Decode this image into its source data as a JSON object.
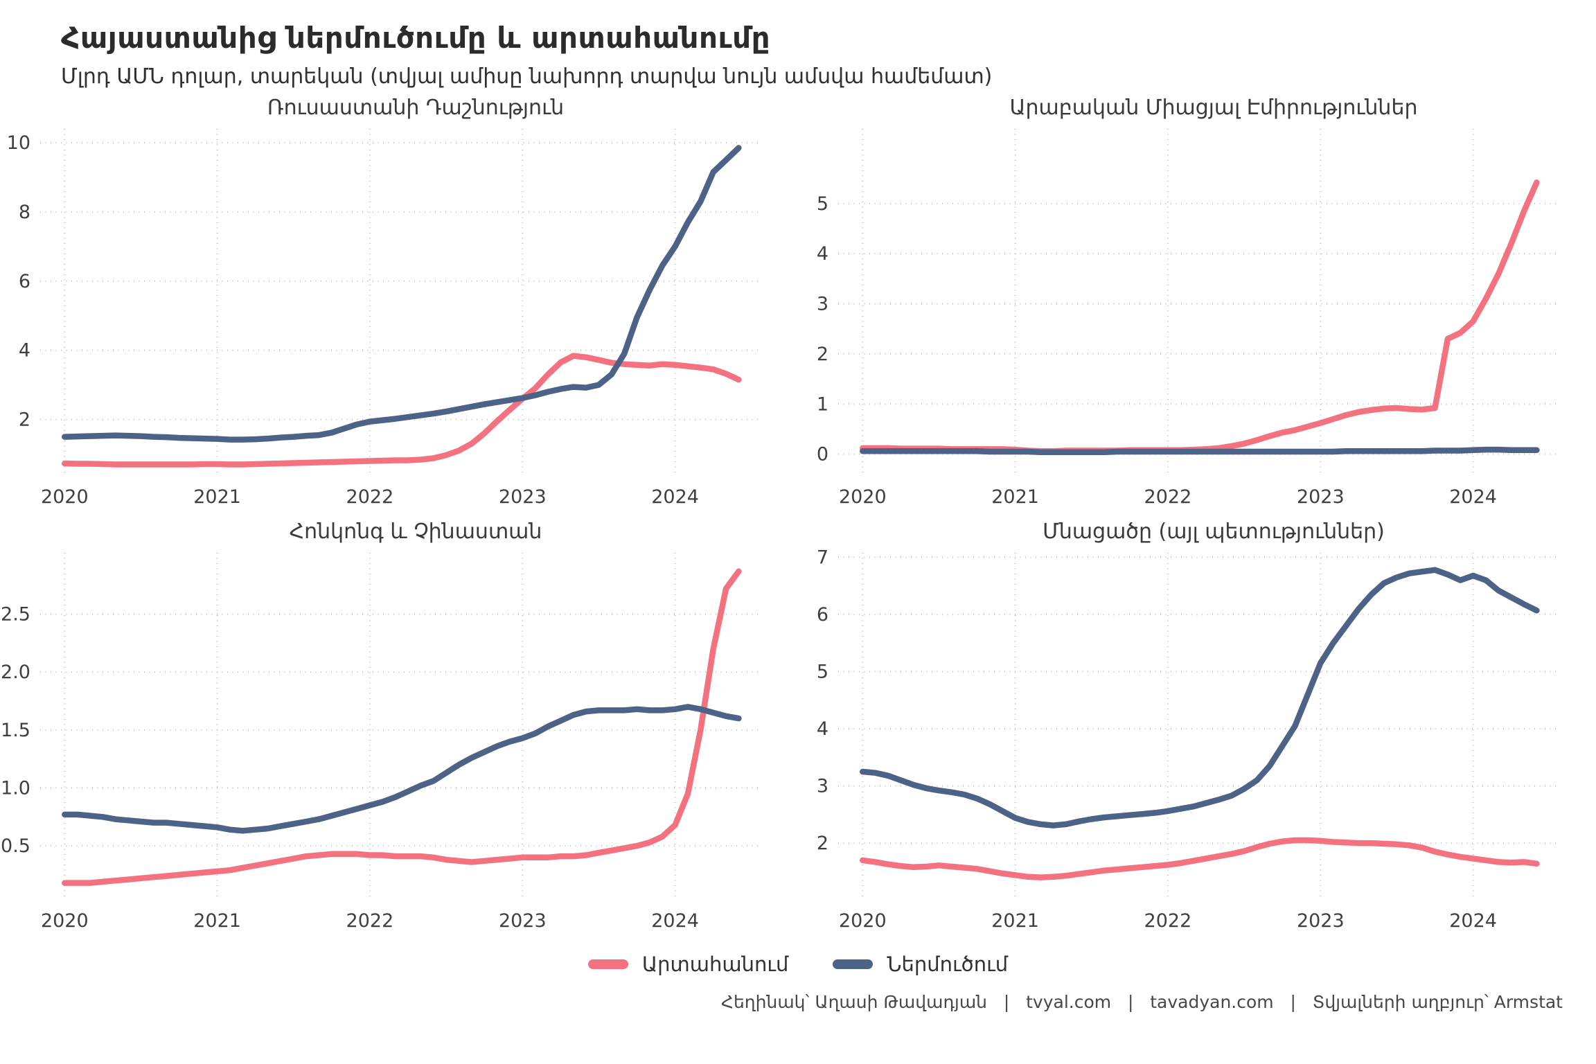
{
  "page": {
    "title": "Հայաստանից ներմուծումը և արտահանումը",
    "subtitle": "Մլրդ ԱՄՆ դոլար, տարեկան (տվյալ ամիսը նախորդ տարվա նույն ամսվա համեմատ)",
    "caption": "Հեղինակ՝ Աղասի Թավադյան   |   tvyal.com   |   tavadyan.com   |   Տվյալների աղբյուր՝ Armstat"
  },
  "legend": [
    {
      "key": "export",
      "label": "Արտահանում",
      "color": "#F4717F"
    },
    {
      "key": "import",
      "label": "Ներմուծում",
      "color": "#4D6287"
    }
  ],
  "axis": {
    "x_start_year": 2020,
    "x_step_months": 1,
    "xlim": [
      2019.84,
      2024.56
    ],
    "xtick_values": [
      2020,
      2021,
      2022,
      2023,
      2024
    ],
    "xtick_labels": [
      "2020",
      "2021",
      "2022",
      "2023",
      "2024"
    ]
  },
  "chart_data": [
    {
      "type": "line",
      "title": "Ռուսաստանի Դաշնություն",
      "ylim": [
        0.39,
        10.4
      ],
      "ytick_values": [
        2,
        4,
        6,
        8,
        10
      ],
      "ytick_labels": [
        "2",
        "4",
        "6",
        "8",
        "10"
      ],
      "series": [
        {
          "key": "export",
          "name": "Արտահանում",
          "color": "#F4717F",
          "values": [
            0.73,
            0.72,
            0.72,
            0.71,
            0.7,
            0.7,
            0.7,
            0.7,
            0.7,
            0.7,
            0.7,
            0.71,
            0.71,
            0.7,
            0.7,
            0.71,
            0.72,
            0.73,
            0.74,
            0.75,
            0.76,
            0.77,
            0.78,
            0.79,
            0.8,
            0.81,
            0.82,
            0.82,
            0.84,
            0.88,
            0.97,
            1.1,
            1.3,
            1.6,
            1.95,
            2.28,
            2.6,
            2.9,
            3.3,
            3.65,
            3.84,
            3.8,
            3.72,
            3.64,
            3.6,
            3.58,
            3.56,
            3.6,
            3.58,
            3.54,
            3.5,
            3.45,
            3.32,
            3.15
          ]
        },
        {
          "key": "import",
          "name": "Ներմուծում",
          "color": "#4D6287",
          "values": [
            1.5,
            1.51,
            1.52,
            1.53,
            1.54,
            1.53,
            1.52,
            1.5,
            1.49,
            1.47,
            1.46,
            1.45,
            1.44,
            1.42,
            1.42,
            1.43,
            1.45,
            1.48,
            1.5,
            1.53,
            1.55,
            1.62,
            1.74,
            1.86,
            1.94,
            1.98,
            2.02,
            2.07,
            2.12,
            2.17,
            2.23,
            2.3,
            2.37,
            2.44,
            2.5,
            2.56,
            2.62,
            2.7,
            2.8,
            2.88,
            2.94,
            2.92,
            3.0,
            3.3,
            3.9,
            4.95,
            5.75,
            6.45,
            7.0,
            7.7,
            8.3,
            9.15,
            9.5,
            9.85
          ]
        }
      ]
    },
    {
      "type": "line",
      "title": "Արաբական Միացյալ Էմիրություններ",
      "ylim": [
        -0.42,
        6.49
      ],
      "ytick_values": [
        0,
        1,
        2,
        3,
        4,
        5
      ],
      "ytick_labels": [
        "0",
        "1",
        "2",
        "3",
        "4",
        "5"
      ],
      "series": [
        {
          "key": "export",
          "name": "Արտահանում",
          "color": "#F4717F",
          "values": [
            0.12,
            0.12,
            0.12,
            0.11,
            0.11,
            0.11,
            0.11,
            0.1,
            0.1,
            0.1,
            0.1,
            0.1,
            0.09,
            0.07,
            0.06,
            0.06,
            0.07,
            0.07,
            0.07,
            0.07,
            0.07,
            0.08,
            0.08,
            0.08,
            0.08,
            0.08,
            0.09,
            0.1,
            0.12,
            0.16,
            0.21,
            0.28,
            0.36,
            0.43,
            0.48,
            0.55,
            0.62,
            0.7,
            0.78,
            0.84,
            0.88,
            0.91,
            0.92,
            0.9,
            0.89,
            0.92,
            2.3,
            2.42,
            2.65,
            3.1,
            3.6,
            4.2,
            4.85,
            5.42
          ]
        },
        {
          "key": "import",
          "name": "Ներմուծում",
          "color": "#4D6287",
          "values": [
            0.06,
            0.06,
            0.06,
            0.06,
            0.06,
            0.06,
            0.06,
            0.06,
            0.06,
            0.06,
            0.05,
            0.05,
            0.05,
            0.05,
            0.04,
            0.04,
            0.04,
            0.04,
            0.04,
            0.04,
            0.05,
            0.05,
            0.05,
            0.05,
            0.05,
            0.05,
            0.05,
            0.05,
            0.05,
            0.05,
            0.05,
            0.05,
            0.05,
            0.05,
            0.05,
            0.05,
            0.05,
            0.05,
            0.06,
            0.06,
            0.06,
            0.06,
            0.06,
            0.06,
            0.06,
            0.07,
            0.07,
            0.07,
            0.08,
            0.09,
            0.09,
            0.08,
            0.08,
            0.08
          ]
        }
      ]
    },
    {
      "type": "line",
      "title": "Հոնկոնգ և Չինաստան",
      "ylim": [
        0.04,
        3.03
      ],
      "ytick_values": [
        0.5,
        1.0,
        1.5,
        2.0,
        2.5
      ],
      "ytick_labels": [
        "0.5",
        "1.0",
        "1.5",
        "2.0",
        "2.5"
      ],
      "series": [
        {
          "key": "export",
          "name": "Արտահանում",
          "color": "#F4717F",
          "values": [
            0.18,
            0.18,
            0.18,
            0.19,
            0.2,
            0.21,
            0.22,
            0.23,
            0.24,
            0.25,
            0.26,
            0.27,
            0.28,
            0.29,
            0.31,
            0.33,
            0.35,
            0.37,
            0.39,
            0.41,
            0.42,
            0.43,
            0.43,
            0.43,
            0.42,
            0.42,
            0.41,
            0.41,
            0.41,
            0.4,
            0.38,
            0.37,
            0.36,
            0.37,
            0.38,
            0.39,
            0.4,
            0.4,
            0.4,
            0.41,
            0.41,
            0.42,
            0.44,
            0.46,
            0.48,
            0.5,
            0.53,
            0.58,
            0.68,
            0.95,
            1.5,
            2.2,
            2.72,
            2.87
          ]
        },
        {
          "key": "import",
          "name": "Ներմուծում",
          "color": "#4D6287",
          "values": [
            0.77,
            0.77,
            0.76,
            0.75,
            0.73,
            0.72,
            0.71,
            0.7,
            0.7,
            0.69,
            0.68,
            0.67,
            0.66,
            0.64,
            0.63,
            0.64,
            0.65,
            0.67,
            0.69,
            0.71,
            0.73,
            0.76,
            0.79,
            0.82,
            0.85,
            0.88,
            0.92,
            0.97,
            1.02,
            1.06,
            1.13,
            1.2,
            1.26,
            1.31,
            1.36,
            1.4,
            1.43,
            1.47,
            1.53,
            1.58,
            1.63,
            1.66,
            1.67,
            1.67,
            1.67,
            1.68,
            1.67,
            1.67,
            1.68,
            1.7,
            1.68,
            1.65,
            1.62,
            1.6
          ]
        }
      ]
    },
    {
      "type": "line",
      "title": "Մնացածը (այլ պետություններ)",
      "ylim": [
        1.02,
        7.08
      ],
      "ytick_values": [
        2,
        3,
        4,
        5,
        6,
        7
      ],
      "ytick_labels": [
        "2",
        "3",
        "4",
        "5",
        "6",
        "7"
      ],
      "series": [
        {
          "key": "export",
          "name": "Արտահանում",
          "color": "#F4717F",
          "values": [
            1.7,
            1.67,
            1.63,
            1.6,
            1.58,
            1.59,
            1.61,
            1.59,
            1.57,
            1.55,
            1.51,
            1.47,
            1.44,
            1.41,
            1.4,
            1.41,
            1.43,
            1.46,
            1.49,
            1.52,
            1.54,
            1.56,
            1.58,
            1.6,
            1.62,
            1.65,
            1.69,
            1.73,
            1.77,
            1.81,
            1.86,
            1.93,
            1.99,
            2.03,
            2.05,
            2.05,
            2.04,
            2.02,
            2.01,
            2.0,
            2.0,
            1.99,
            1.98,
            1.96,
            1.92,
            1.85,
            1.8,
            1.76,
            1.73,
            1.7,
            1.67,
            1.66,
            1.67,
            1.64
          ]
        },
        {
          "key": "import",
          "name": "Ներմուծում",
          "color": "#4D6287",
          "values": [
            3.25,
            3.23,
            3.18,
            3.1,
            3.02,
            2.96,
            2.92,
            2.89,
            2.85,
            2.78,
            2.68,
            2.56,
            2.44,
            2.37,
            2.33,
            2.31,
            2.33,
            2.38,
            2.42,
            2.45,
            2.47,
            2.49,
            2.51,
            2.53,
            2.56,
            2.6,
            2.64,
            2.7,
            2.76,
            2.83,
            2.95,
            3.1,
            3.35,
            3.7,
            4.05,
            4.6,
            5.15,
            5.5,
            5.8,
            6.1,
            6.35,
            6.55,
            6.65,
            6.72,
            6.75,
            6.78,
            6.7,
            6.6,
            6.68,
            6.6,
            6.42,
            6.3,
            6.18,
            6.07
          ]
        }
      ]
    }
  ]
}
